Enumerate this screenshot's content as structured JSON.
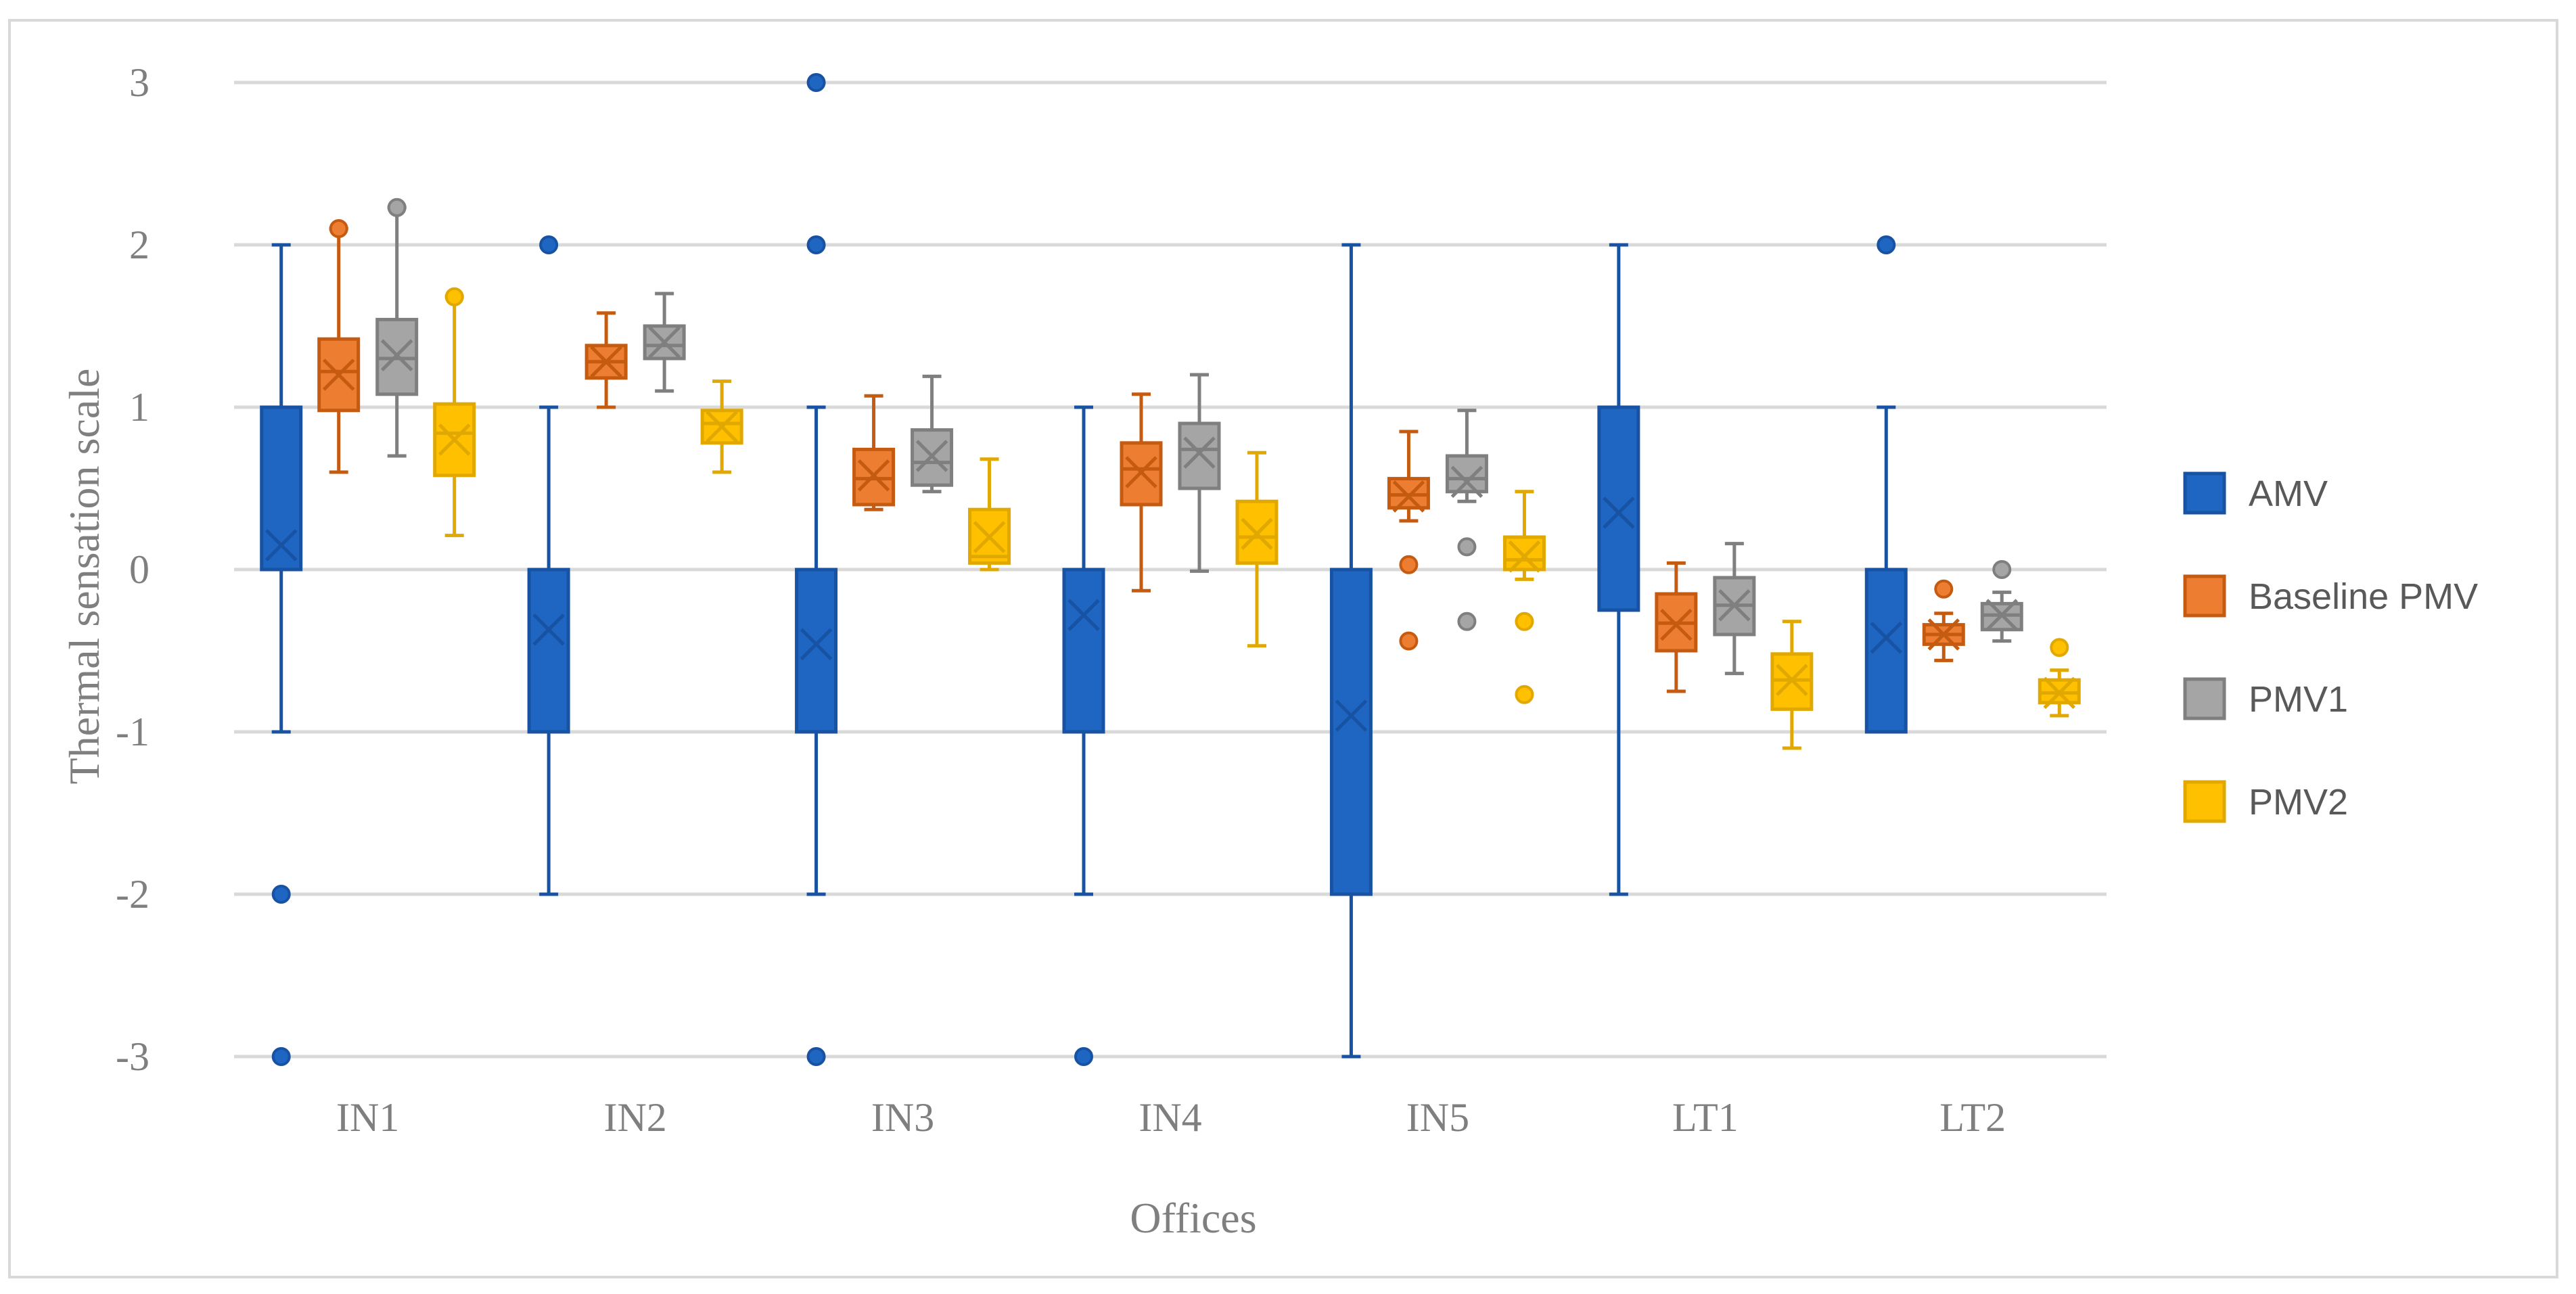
{
  "chart_data": {
    "type": "boxplot",
    "title": "",
    "xlabel": "Offices",
    "ylabel": "Thermal sensation scale",
    "ylim": [
      -3,
      3
    ],
    "yticks": [
      3,
      2,
      1,
      0,
      -1,
      -2,
      -3
    ],
    "ytick_labels": [
      "3",
      "2",
      "1",
      "0",
      "-1",
      "-2",
      "-3"
    ],
    "grid": true,
    "legend_position": "right",
    "categories": [
      "IN1",
      "IN2",
      "IN3",
      "IN4",
      "IN5",
      "LT1",
      "LT2"
    ],
    "series": [
      {
        "name": "AMV",
        "color": "#1f65c2",
        "boxes": [
          {
            "min": -1,
            "q1": 0,
            "median": 0,
            "q3": 1,
            "max": 2,
            "mean": 0.15,
            "outliers": [
              -2,
              -3
            ]
          },
          {
            "min": -2,
            "q1": -1,
            "median": 0,
            "q3": 0,
            "max": 1,
            "mean": -0.37,
            "outliers": [
              2
            ]
          },
          {
            "min": -2,
            "q1": -1,
            "median": 0,
            "q3": 0,
            "max": 1,
            "mean": -0.46,
            "outliers": [
              3,
              2,
              -3
            ]
          },
          {
            "min": -2,
            "q1": -1,
            "median": 0,
            "q3": 0,
            "max": 1,
            "mean": -0.28,
            "outliers": [
              -3
            ]
          },
          {
            "min": -3,
            "q1": -2,
            "median": 0,
            "q3": 0,
            "max": 2,
            "mean": -0.9,
            "outliers": []
          },
          {
            "min": -2,
            "q1": -0.25,
            "median": 1,
            "q3": 1,
            "max": 2,
            "mean": 0.35,
            "outliers": []
          },
          {
            "min": -1,
            "q1": -1,
            "median": 0,
            "q3": 0,
            "max": 1,
            "mean": -0.42,
            "outliers": [
              2
            ]
          }
        ]
      },
      {
        "name": "Baseline PMV",
        "color": "#ed7d31",
        "boxes": [
          {
            "min": 0.6,
            "q1": 0.98,
            "median": 1.22,
            "q3": 1.42,
            "max": 2.1,
            "mean": 1.2,
            "outliers": [
              2.1
            ]
          },
          {
            "min": 1.0,
            "q1": 1.18,
            "median": 1.28,
            "q3": 1.38,
            "max": 1.58,
            "mean": 1.28,
            "outliers": []
          },
          {
            "min": 0.37,
            "q1": 0.4,
            "median": 0.56,
            "q3": 0.74,
            "max": 1.07,
            "mean": 0.58,
            "outliers": []
          },
          {
            "min": -0.13,
            "q1": 0.4,
            "median": 0.62,
            "q3": 0.78,
            "max": 1.08,
            "mean": 0.6,
            "outliers": []
          },
          {
            "min": 0.3,
            "q1": 0.38,
            "median": 0.46,
            "q3": 0.56,
            "max": 0.85,
            "mean": 0.45,
            "outliers": [
              0.03,
              -0.44
            ]
          },
          {
            "min": -0.75,
            "q1": -0.5,
            "median": -0.33,
            "q3": -0.15,
            "max": 0.04,
            "mean": -0.34,
            "outliers": []
          },
          {
            "min": -0.56,
            "q1": -0.46,
            "median": -0.4,
            "q3": -0.34,
            "max": -0.27,
            "mean": -0.4,
            "outliers": [
              -0.12
            ]
          }
        ]
      },
      {
        "name": "PMV1",
        "color": "#a5a5a5",
        "boxes": [
          {
            "min": 0.7,
            "q1": 1.08,
            "median": 1.3,
            "q3": 1.54,
            "max": 2.23,
            "mean": 1.32,
            "outliers": [
              2.23
            ]
          },
          {
            "min": 1.1,
            "q1": 1.3,
            "median": 1.38,
            "q3": 1.5,
            "max": 1.7,
            "mean": 1.4,
            "outliers": []
          },
          {
            "min": 0.48,
            "q1": 0.52,
            "median": 0.66,
            "q3": 0.86,
            "max": 1.19,
            "mean": 0.7,
            "outliers": []
          },
          {
            "min": -0.01,
            "q1": 0.5,
            "median": 0.74,
            "q3": 0.9,
            "max": 1.2,
            "mean": 0.72,
            "outliers": []
          },
          {
            "min": 0.42,
            "q1": 0.48,
            "median": 0.56,
            "q3": 0.7,
            "max": 0.98,
            "mean": 0.54,
            "outliers": [
              0.14,
              -0.32
            ]
          },
          {
            "min": -0.64,
            "q1": -0.4,
            "median": -0.22,
            "q3": -0.05,
            "max": 0.16,
            "mean": -0.22,
            "outliers": []
          },
          {
            "min": -0.44,
            "q1": -0.37,
            "median": -0.28,
            "q3": -0.21,
            "max": -0.14,
            "mean": -0.28,
            "outliers": [
              0
            ]
          }
        ]
      },
      {
        "name": "PMV2",
        "color": "#ffc000",
        "boxes": [
          {
            "min": 0.21,
            "q1": 0.58,
            "median": 0.84,
            "q3": 1.02,
            "max": 1.68,
            "mean": 0.8,
            "outliers": [
              1.68
            ]
          },
          {
            "min": 0.6,
            "q1": 0.78,
            "median": 0.9,
            "q3": 0.98,
            "max": 1.16,
            "mean": 0.88,
            "outliers": []
          },
          {
            "min": 0.0,
            "q1": 0.04,
            "median": 0.08,
            "q3": 0.37,
            "max": 0.68,
            "mean": 0.2,
            "outliers": []
          },
          {
            "min": -0.47,
            "q1": 0.04,
            "median": 0.2,
            "q3": 0.42,
            "max": 0.72,
            "mean": 0.22,
            "outliers": []
          },
          {
            "min": -0.06,
            "q1": 0.0,
            "median": 0.06,
            "q3": 0.2,
            "max": 0.48,
            "mean": 0.08,
            "outliers": [
              -0.32,
              -0.77
            ]
          },
          {
            "min": -1.1,
            "q1": -0.86,
            "median": -0.68,
            "q3": -0.52,
            "max": -0.32,
            "mean": -0.68,
            "outliers": []
          },
          {
            "min": -0.9,
            "q1": -0.82,
            "median": -0.76,
            "q3": -0.68,
            "max": -0.62,
            "mean": -0.76,
            "outliers": [
              -0.48
            ]
          }
        ]
      }
    ]
  }
}
